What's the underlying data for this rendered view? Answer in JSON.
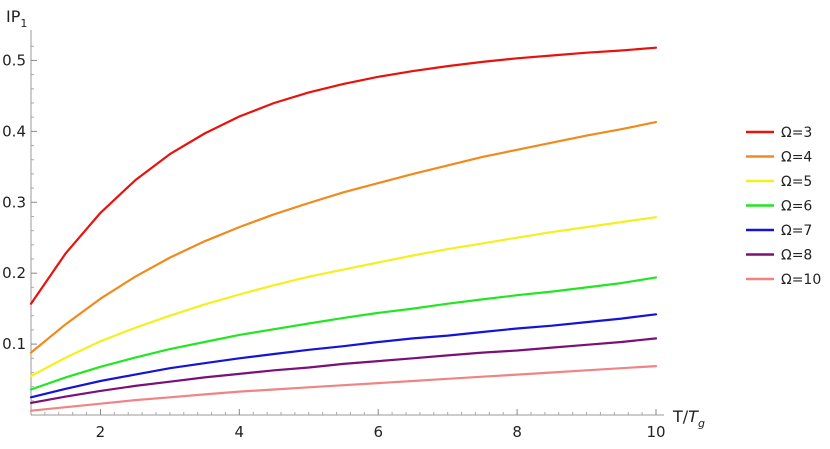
{
  "chart_data": {
    "type": "line",
    "title": "",
    "xlabel": "T/",
    "xlabel_italic": "T",
    "xlabel_subscript": "g",
    "ylabel": "IP",
    "ylabel_subscript": "1",
    "xlim": [
      1,
      10
    ],
    "ylim": [
      0,
      0.55
    ],
    "x_ticks": [
      2,
      4,
      6,
      8,
      10
    ],
    "x_tick_labels": [
      "2",
      "4",
      "6",
      "8",
      "10"
    ],
    "y_ticks": [
      0.1,
      0.2,
      0.3,
      0.4,
      0.5
    ],
    "y_tick_labels": [
      "0.1",
      "0.2",
      "0.3",
      "0.4",
      "0.5"
    ],
    "grid": false,
    "legend_position": "right",
    "x": [
      1,
      1.5,
      2,
      2.5,
      3,
      3.5,
      4,
      4.5,
      5,
      5.5,
      6,
      6.5,
      7,
      7.5,
      8,
      8.5,
      9,
      9.5,
      10
    ],
    "series": [
      {
        "name": "Ω=3",
        "color": "#e8120c",
        "values": [
          0.157,
          0.228,
          0.285,
          0.331,
          0.368,
          0.397,
          0.421,
          0.44,
          0.455,
          0.467,
          0.477,
          0.485,
          0.492,
          0.498,
          0.503,
          0.507,
          0.511,
          0.514,
          0.518
        ]
      },
      {
        "name": "Ω=4",
        "color": "#f08a1c",
        "values": [
          0.088,
          0.128,
          0.164,
          0.195,
          0.222,
          0.245,
          0.265,
          0.283,
          0.299,
          0.314,
          0.327,
          0.34,
          0.352,
          0.364,
          0.374,
          0.384,
          0.394,
          0.403,
          0.413
        ]
      },
      {
        "name": "Ω=5",
        "color": "#f4f020",
        "values": [
          0.055,
          0.081,
          0.104,
          0.123,
          0.14,
          0.156,
          0.17,
          0.183,
          0.195,
          0.205,
          0.215,
          0.225,
          0.234,
          0.242,
          0.25,
          0.258,
          0.265,
          0.272,
          0.279
        ]
      },
      {
        "name": "Ω=6",
        "color": "#22e622",
        "values": [
          0.036,
          0.053,
          0.068,
          0.081,
          0.093,
          0.103,
          0.113,
          0.121,
          0.129,
          0.137,
          0.144,
          0.15,
          0.157,
          0.163,
          0.169,
          0.174,
          0.18,
          0.186,
          0.194
        ]
      },
      {
        "name": "Ω=7",
        "color": "#1414d8",
        "values": [
          0.025,
          0.037,
          0.048,
          0.057,
          0.066,
          0.073,
          0.08,
          0.086,
          0.092,
          0.097,
          0.103,
          0.108,
          0.112,
          0.117,
          0.122,
          0.126,
          0.131,
          0.136,
          0.142
        ]
      },
      {
        "name": "Ω=8",
        "color": "#7a1078",
        "values": [
          0.017,
          0.026,
          0.034,
          0.041,
          0.047,
          0.053,
          0.058,
          0.063,
          0.067,
          0.072,
          0.076,
          0.08,
          0.084,
          0.088,
          0.091,
          0.095,
          0.099,
          0.103,
          0.108
        ]
      },
      {
        "name": "Ω=10",
        "color": "#f08484",
        "values": [
          0.006,
          0.011,
          0.016,
          0.021,
          0.025,
          0.029,
          0.033,
          0.036,
          0.039,
          0.042,
          0.045,
          0.048,
          0.051,
          0.054,
          0.057,
          0.06,
          0.063,
          0.066,
          0.069
        ]
      }
    ]
  }
}
